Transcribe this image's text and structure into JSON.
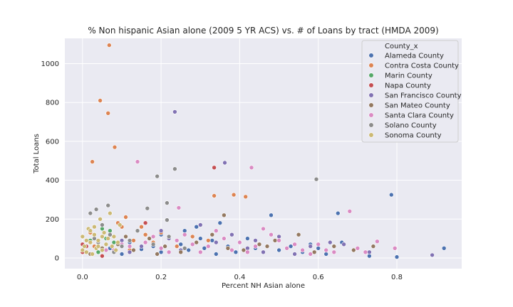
{
  "chart_data": {
    "type": "scatter",
    "title": "% Non hispanic Asian alone (2009 5 YR ACS) vs. # of Loans by tract (HMDA 2009)",
    "xlabel": "Percent NH Asian alone",
    "ylabel": "Total Loans",
    "xlim": [
      -0.045,
      0.965
    ],
    "ylim": [
      -55,
      1130
    ],
    "xticks": [
      0.0,
      0.2,
      0.4,
      0.6,
      0.8
    ],
    "xtick_labels": [
      "0.0",
      "0.2",
      "0.4",
      "0.6",
      "0.8"
    ],
    "yticks": [
      0,
      200,
      400,
      600,
      800,
      1000
    ],
    "ytick_labels": [
      "0",
      "200",
      "400",
      "600",
      "800",
      "1000"
    ],
    "grid": true,
    "legend_title": "County_x",
    "legend_position": "top-right",
    "series": [
      {
        "name": "Alameda County",
        "color": "#4c72b0",
        "points": [
          [
            0.04,
            30
          ],
          [
            0.07,
            50
          ],
          [
            0.1,
            20
          ],
          [
            0.12,
            80
          ],
          [
            0.15,
            45
          ],
          [
            0.18,
            60
          ],
          [
            0.2,
            30
          ],
          [
            0.22,
            110
          ],
          [
            0.25,
            70
          ],
          [
            0.27,
            40
          ],
          [
            0.29,
            160
          ],
          [
            0.31,
            50
          ],
          [
            0.33,
            90
          ],
          [
            0.35,
            180
          ],
          [
            0.37,
            60
          ],
          [
            0.39,
            30
          ],
          [
            0.42,
            100
          ],
          [
            0.45,
            70
          ],
          [
            0.48,
            220
          ],
          [
            0.5,
            40
          ],
          [
            0.53,
            60
          ],
          [
            0.56,
            30
          ],
          [
            0.6,
            50
          ],
          [
            0.62,
            20
          ],
          [
            0.65,
            230
          ],
          [
            0.66,
            80
          ],
          [
            0.73,
            10
          ],
          [
            0.786,
            325
          ],
          [
            0.8,
            5
          ],
          [
            0.92,
            50
          ],
          [
            0.2,
            120
          ],
          [
            0.26,
            140
          ],
          [
            0.34,
            20
          ],
          [
            0.44,
            50
          ],
          [
            0.58,
            70
          ],
          [
            0.3,
            100
          ]
        ]
      },
      {
        "name": "Contra Costa County",
        "color": "#dd8452",
        "points": [
          [
            0.025,
            495
          ],
          [
            0.045,
            810
          ],
          [
            0.065,
            745
          ],
          [
            0.068,
            1095
          ],
          [
            0.082,
            570
          ],
          [
            0.335,
            320
          ],
          [
            0.385,
            325
          ],
          [
            0.415,
            315
          ],
          [
            0.05,
            150
          ],
          [
            0.07,
            120
          ],
          [
            0.09,
            180
          ],
          [
            0.11,
            210
          ],
          [
            0.13,
            90
          ],
          [
            0.15,
            160
          ],
          [
            0.03,
            60
          ],
          [
            0.06,
            100
          ],
          [
            0.18,
            80
          ],
          [
            0.2,
            130
          ],
          [
            0.24,
            60
          ],
          [
            0.28,
            110
          ],
          [
            0.32,
            90
          ],
          [
            0.12,
            40
          ],
          [
            0.08,
            30
          ],
          [
            0.16,
            120
          ],
          [
            0.02,
            130
          ],
          [
            0.1,
            160
          ]
        ]
      },
      {
        "name": "Marin County",
        "color": "#55a868",
        "points": [
          [
            0.02,
            90
          ],
          [
            0.03,
            120
          ],
          [
            0.04,
            60
          ],
          [
            0.05,
            150
          ],
          [
            0.06,
            100
          ],
          [
            0.07,
            140
          ],
          [
            0.08,
            80
          ],
          [
            0.04,
            30
          ]
        ]
      },
      {
        "name": "Napa County",
        "color": "#c44e52",
        "points": [
          [
            0.0,
            30
          ],
          [
            0.01,
            60
          ],
          [
            0.02,
            20
          ],
          [
            0.0,
            70
          ],
          [
            0.335,
            465
          ],
          [
            0.16,
            180
          ],
          [
            0.05,
            10
          ]
        ]
      },
      {
        "name": "San Francisco County",
        "color": "#8172b3",
        "points": [
          [
            0.235,
            752
          ],
          [
            0.362,
            490
          ],
          [
            0.1,
            90
          ],
          [
            0.15,
            60
          ],
          [
            0.2,
            140
          ],
          [
            0.25,
            40
          ],
          [
            0.3,
            170
          ],
          [
            0.34,
            80
          ],
          [
            0.38,
            120
          ],
          [
            0.42,
            50
          ],
          [
            0.46,
            30
          ],
          [
            0.5,
            110
          ],
          [
            0.54,
            20
          ],
          [
            0.58,
            60
          ],
          [
            0.63,
            80
          ],
          [
            0.665,
            70
          ],
          [
            0.89,
            15
          ],
          [
            0.73,
            30
          ],
          [
            0.44,
            90
          ],
          [
            0.22,
            100
          ],
          [
            0.12,
            30
          ]
        ]
      },
      {
        "name": "San Mateo County",
        "color": "#937860",
        "points": [
          [
            0.02,
            20
          ],
          [
            0.05,
            50
          ],
          [
            0.09,
            70
          ],
          [
            0.13,
            40
          ],
          [
            0.17,
            100
          ],
          [
            0.21,
            60
          ],
          [
            0.25,
            30
          ],
          [
            0.29,
            80
          ],
          [
            0.33,
            120
          ],
          [
            0.37,
            50
          ],
          [
            0.41,
            40
          ],
          [
            0.45,
            70
          ],
          [
            0.49,
            90
          ],
          [
            0.55,
            120
          ],
          [
            0.59,
            30
          ],
          [
            0.64,
            60
          ],
          [
            0.69,
            40
          ],
          [
            0.74,
            60
          ],
          [
            0.36,
            220
          ],
          [
            0.47,
            60
          ],
          [
            0.11,
            110
          ],
          [
            0.19,
            20
          ]
        ]
      },
      {
        "name": "Santa Clara County",
        "color": "#da8bc3",
        "points": [
          [
            0.14,
            495
          ],
          [
            0.245,
            258
          ],
          [
            0.43,
            465
          ],
          [
            0.68,
            240
          ],
          [
            0.75,
            85
          ],
          [
            0.795,
            50
          ],
          [
            0.72,
            30
          ],
          [
            0.7,
            50
          ],
          [
            0.08,
            40
          ],
          [
            0.12,
            60
          ],
          [
            0.16,
            80
          ],
          [
            0.2,
            50
          ],
          [
            0.24,
            90
          ],
          [
            0.28,
            70
          ],
          [
            0.32,
            60
          ],
          [
            0.36,
            100
          ],
          [
            0.4,
            80
          ],
          [
            0.44,
            60
          ],
          [
            0.48,
            120
          ],
          [
            0.52,
            50
          ],
          [
            0.56,
            40
          ],
          [
            0.6,
            70
          ],
          [
            0.64,
            30
          ],
          [
            0.46,
            150
          ],
          [
            0.38,
            40
          ],
          [
            0.3,
            30
          ],
          [
            0.22,
            30
          ],
          [
            0.18,
            110
          ],
          [
            0.26,
            120
          ],
          [
            0.34,
            140
          ],
          [
            0.42,
            30
          ],
          [
            0.5,
            90
          ],
          [
            0.54,
            70
          ],
          [
            0.58,
            20
          ],
          [
            0.62,
            40
          ],
          [
            0.1,
            70
          ],
          [
            0.06,
            40
          ]
        ]
      },
      {
        "name": "Solano County",
        "color": "#8c8c8c",
        "points": [
          [
            0.02,
            230
          ],
          [
            0.035,
            250
          ],
          [
            0.065,
            270
          ],
          [
            0.165,
            255
          ],
          [
            0.19,
            420
          ],
          [
            0.215,
            283
          ],
          [
            0.235,
            458
          ],
          [
            0.595,
            405
          ],
          [
            0.04,
            80
          ],
          [
            0.07,
            120
          ],
          [
            0.1,
            60
          ],
          [
            0.03,
            100
          ],
          [
            0.05,
            170
          ],
          [
            0.08,
            30
          ],
          [
            0.12,
            90
          ],
          [
            0.14,
            140
          ],
          [
            0.18,
            70
          ],
          [
            0.22,
            110
          ],
          [
            0.26,
            50
          ],
          [
            0.215,
            195
          ]
        ]
      },
      {
        "name": "Sonoma County",
        "color": "#ccb974",
        "points": [
          [
            0.0,
            110
          ],
          [
            0.005,
            60
          ],
          [
            0.01,
            30
          ],
          [
            0.015,
            150
          ],
          [
            0.02,
            80
          ],
          [
            0.025,
            20
          ],
          [
            0.03,
            120
          ],
          [
            0.035,
            50
          ],
          [
            0.04,
            90
          ],
          [
            0.045,
            200
          ],
          [
            0.05,
            40
          ],
          [
            0.055,
            130
          ],
          [
            0.06,
            70
          ],
          [
            0.065,
            100
          ],
          [
            0.07,
            230
          ],
          [
            0.075,
            60
          ],
          [
            0.08,
            110
          ],
          [
            0.085,
            40
          ],
          [
            0.09,
            80
          ],
          [
            0.095,
            170
          ],
          [
            0.0,
            40
          ],
          [
            0.01,
            90
          ],
          [
            0.02,
            140
          ],
          [
            0.03,
            160
          ],
          [
            0.04,
            60
          ],
          [
            0.05,
            110
          ]
        ]
      }
    ]
  }
}
